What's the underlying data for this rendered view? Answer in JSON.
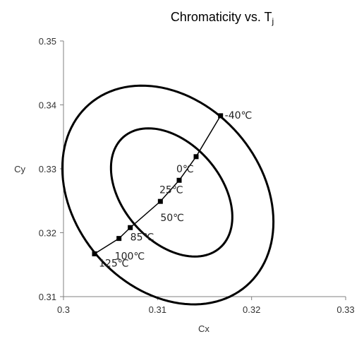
{
  "chart_data": {
    "type": "scatter",
    "title": "Chromaticity vs. T",
    "title_subscript": "j",
    "xlabel": "Cx",
    "ylabel": "Cy",
    "xlim": [
      0.3,
      0.33
    ],
    "ylim": [
      0.31,
      0.35
    ],
    "x_ticks": [
      "0.3",
      "0.31",
      "0.32",
      "0.33"
    ],
    "y_ticks": [
      "0.31",
      "0.32",
      "0.33",
      "0.34",
      "0.35"
    ],
    "grid": false,
    "legend": "none",
    "colors": {
      "line": "#000000",
      "text": "#333333"
    },
    "series": [
      {
        "points": [
          {
            "label": "-40℃",
            "x": 0.3167,
            "y": 0.3383
          },
          {
            "label": "0℃",
            "x": 0.3141,
            "y": 0.3319
          },
          {
            "label": "25℃",
            "x": 0.3123,
            "y": 0.3282
          },
          {
            "label": "50℃",
            "x": 0.3103,
            "y": 0.3249
          },
          {
            "label": "85℃",
            "x": 0.3071,
            "y": 0.3208
          },
          {
            "label": "100℃",
            "x": 0.3059,
            "y": 0.3191
          },
          {
            "label": "125℃",
            "x": 0.3033,
            "y": 0.3167
          }
        ]
      }
    ],
    "ellipses": [
      {
        "name": "inner",
        "cx": 0.3115,
        "cy": 0.3263,
        "rx": 0.0052,
        "ry": 0.0115,
        "rotation_deg": 41
      },
      {
        "name": "outer",
        "cx": 0.3111,
        "cy": 0.3259,
        "rx": 0.0099,
        "ry": 0.0188,
        "rotation_deg": 41
      }
    ]
  }
}
